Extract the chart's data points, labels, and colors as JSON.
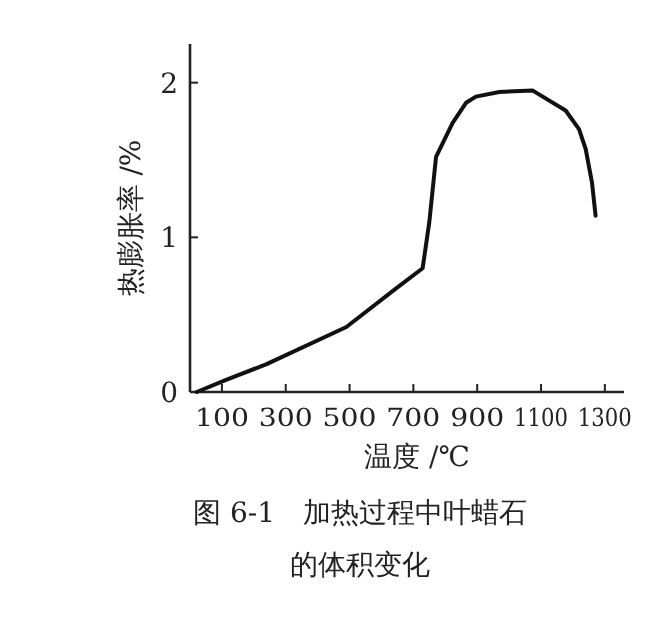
{
  "chart_data": {
    "type": "line",
    "title": "图 6-1　加热过程中叶蜡石的体积变化",
    "xlabel": "温度 /℃",
    "ylabel": "热膨胀率 /%",
    "x": [
      21,
      115,
      240,
      490,
      646,
      729,
      750,
      771,
      823,
      865,
      896,
      969,
      1073,
      1177,
      1219,
      1240,
      1260,
      1271
    ],
    "values": [
      0,
      0.08,
      0.18,
      0.42,
      0.67,
      0.8,
      1.1,
      1.52,
      1.74,
      1.87,
      1.91,
      1.94,
      1.95,
      1.82,
      1.7,
      1.57,
      1.35,
      1.14
    ],
    "color": "#111111",
    "xlim": [
      0,
      1360
    ],
    "ylim": [
      0,
      2.25
    ],
    "xticks": [
      100,
      300,
      500,
      700,
      900,
      1100,
      1300
    ],
    "yticks": [
      0,
      1,
      2
    ],
    "grid": false,
    "marker": "none",
    "line_style": "solid"
  }
}
